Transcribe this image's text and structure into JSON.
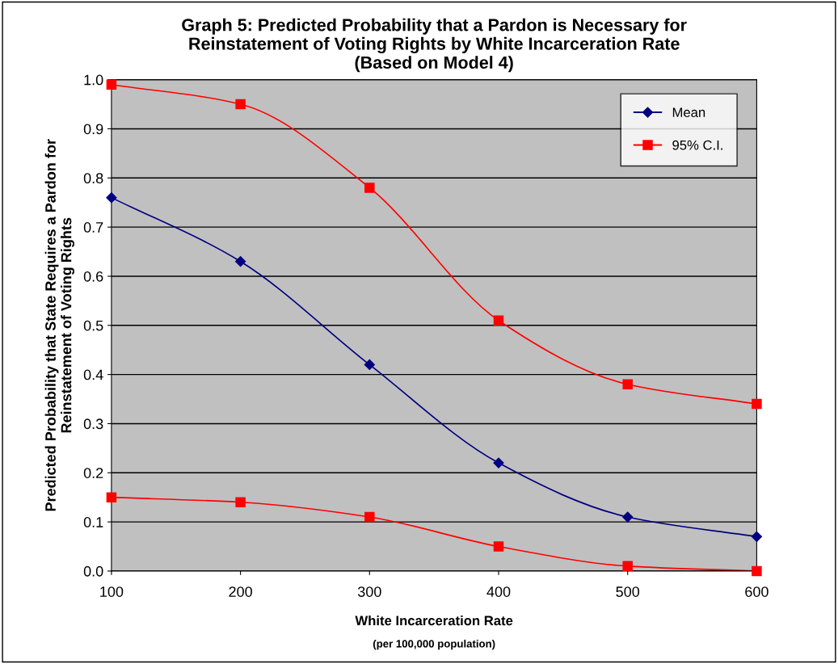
{
  "chart_data": {
    "type": "line",
    "title": "Graph 5: Predicted Probability that a Pardon is Necessary for\nReinstatement of Voting Rights by White Incarceration Rate\n(Based on Model 4)",
    "xlabel": "White Incarceration Rate",
    "ylabel": "Predicted Probability that State Requires a Pardon for\nReinstatement of Voting Rights",
    "annotations": [
      "(per 100,000 population)"
    ],
    "x": [
      100,
      200,
      300,
      400,
      500,
      600
    ],
    "series": [
      {
        "name": "Mean",
        "color": "#000080",
        "marker": "diamond",
        "values": [
          0.76,
          0.63,
          0.42,
          0.22,
          0.11,
          0.07
        ]
      },
      {
        "name": "95% C.I.",
        "color": "#ff0000",
        "marker": "square",
        "values": [
          0.99,
          0.95,
          0.78,
          0.51,
          0.38,
          0.34
        ]
      },
      {
        "color": "#ff0000",
        "marker": "square",
        "values": [
          0.15,
          0.14,
          0.11,
          0.05,
          0.01,
          0.0
        ]
      }
    ],
    "xlim": [
      100,
      600
    ],
    "xticks": [
      100,
      200,
      300,
      400,
      500,
      600
    ],
    "ylim": [
      0,
      1
    ],
    "yticks": [
      {
        "value": 0,
        "label": "0.0"
      },
      0.1,
      0.2,
      0.3,
      0.4,
      0.5,
      0.6,
      0.7,
      0.8,
      0.9,
      {
        "value": 1,
        "label": "1.0"
      }
    ],
    "grid": "y",
    "legend": "top right",
    "line_style": "solid"
  }
}
